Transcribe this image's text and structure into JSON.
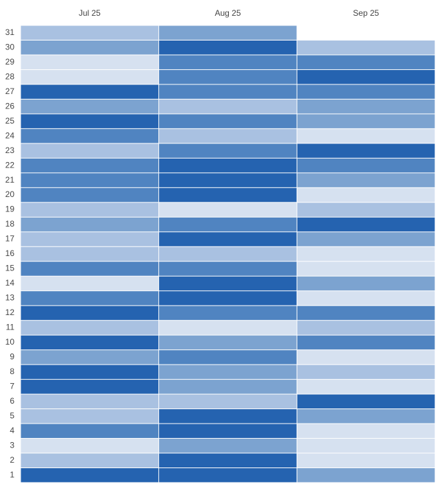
{
  "chart_data": {
    "type": "heatmap",
    "categories": [
      1,
      2,
      3,
      4,
      5,
      6,
      7,
      8,
      9,
      10,
      11,
      12,
      13,
      14,
      15,
      16,
      17,
      18,
      19,
      20,
      21,
      22,
      23,
      24,
      25,
      26,
      27,
      28,
      29,
      30,
      31
    ],
    "colors": [
      "#d6e1f0",
      "#a9c1e1",
      "#7ca3d0",
      "#5084c1",
      "#2563b0"
    ],
    "series": [
      {
        "name": "Jul 25",
        "values": [
          5,
          2,
          1,
          4,
          2,
          2,
          5,
          5,
          3,
          5,
          2,
          5,
          4,
          1,
          4,
          2,
          2,
          3,
          2,
          4,
          4,
          4,
          2,
          4,
          5,
          3,
          5,
          1,
          1,
          3,
          2
        ]
      },
      {
        "name": "Aug 25",
        "values": [
          5,
          5,
          3,
          5,
          5,
          2,
          3,
          3,
          4,
          3,
          1,
          4,
          5,
          5,
          4,
          2,
          5,
          4,
          1,
          5,
          5,
          5,
          4,
          2,
          4,
          2,
          4,
          4,
          4,
          5,
          3
        ]
      },
      {
        "name": "Sep 25",
        "values": [
          3,
          1,
          1,
          1,
          3,
          5,
          1,
          2,
          1,
          4,
          2,
          4,
          1,
          3,
          1,
          1,
          3,
          5,
          2,
          1,
          3,
          4,
          5,
          1,
          3,
          3,
          4,
          5,
          4,
          2,
          null
        ]
      }
    ]
  }
}
